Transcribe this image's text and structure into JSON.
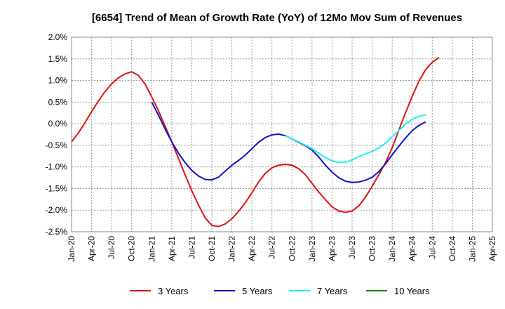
{
  "chart_data": {
    "type": "line",
    "title": "[6654]  Trend of Mean of Growth Rate (YoY) of 12Mo Mov Sum of Revenues",
    "xlabel": "",
    "ylabel": "",
    "ylim": [
      -2.5,
      2.0
    ],
    "y_ticks": [
      2.0,
      1.5,
      1.0,
      0.5,
      0.0,
      -0.5,
      -1.0,
      -1.5,
      -2.0,
      -2.5
    ],
    "y_tick_labels": [
      "2.0%",
      "1.5%",
      "1.0%",
      "0.5%",
      "0.0%",
      "-0.5%",
      "-1.0%",
      "-1.5%",
      "-2.0%",
      "-2.5%"
    ],
    "x_start_month_index": 0,
    "x_end_month_index": 63,
    "x_tick_labels": [
      "Jan-20",
      "Apr-20",
      "Jul-20",
      "Oct-20",
      "Jan-21",
      "Apr-21",
      "Jul-21",
      "Oct-21",
      "Jan-22",
      "Apr-22",
      "Jul-22",
      "Oct-22",
      "Jan-23",
      "Apr-23",
      "Jul-23",
      "Oct-23",
      "Jan-24",
      "Apr-24",
      "Jul-24",
      "Oct-24",
      "Jan-25",
      "Apr-25"
    ],
    "grid": true,
    "legend_position": "bottom",
    "series": [
      {
        "name": "3 Years",
        "color": "#dd1111",
        "start_index": 0,
        "values": [
          -0.42,
          -0.22,
          0.02,
          0.28,
          0.52,
          0.74,
          0.92,
          1.06,
          1.15,
          1.2,
          1.12,
          0.92,
          0.62,
          0.3,
          -0.05,
          -0.42,
          -0.8,
          -1.18,
          -1.55,
          -1.88,
          -2.18,
          -2.35,
          -2.38,
          -2.32,
          -2.2,
          -2.03,
          -1.83,
          -1.6,
          -1.35,
          -1.15,
          -1.02,
          -0.96,
          -0.94,
          -0.96,
          -1.04,
          -1.18,
          -1.38,
          -1.58,
          -1.76,
          -1.92,
          -2.02,
          -2.05,
          -2.02,
          -1.9,
          -1.7,
          -1.45,
          -1.18,
          -0.9,
          -0.56,
          -0.15,
          0.25,
          0.63,
          0.98,
          1.25,
          1.42,
          1.53
        ]
      },
      {
        "name": "5 Years",
        "color": "#0a14c8",
        "start_index": 12,
        "values": [
          0.5,
          0.2,
          -0.12,
          -0.42,
          -0.68,
          -0.9,
          -1.08,
          -1.21,
          -1.29,
          -1.3,
          -1.24,
          -1.1,
          -0.96,
          -0.85,
          -0.73,
          -0.58,
          -0.43,
          -0.32,
          -0.26,
          -0.24,
          -0.28,
          -0.35,
          -0.43,
          -0.51,
          -0.61,
          -0.77,
          -0.96,
          -1.12,
          -1.25,
          -1.33,
          -1.36,
          -1.35,
          -1.31,
          -1.24,
          -1.11,
          -0.93,
          -0.72,
          -0.52,
          -0.33,
          -0.16,
          -0.04,
          0.04
        ]
      },
      {
        "name": "7 Years",
        "color": "#22eeee",
        "start_index": 32,
        "values": [
          -0.28,
          -0.35,
          -0.42,
          -0.5,
          -0.58,
          -0.68,
          -0.78,
          -0.86,
          -0.9,
          -0.89,
          -0.84,
          -0.76,
          -0.7,
          -0.64,
          -0.56,
          -0.45,
          -0.3,
          -0.16,
          -0.01,
          0.1,
          0.17,
          0.2
        ]
      },
      {
        "name": "10 Years",
        "color": "#138a13",
        "start_index": 0,
        "values": []
      }
    ]
  }
}
